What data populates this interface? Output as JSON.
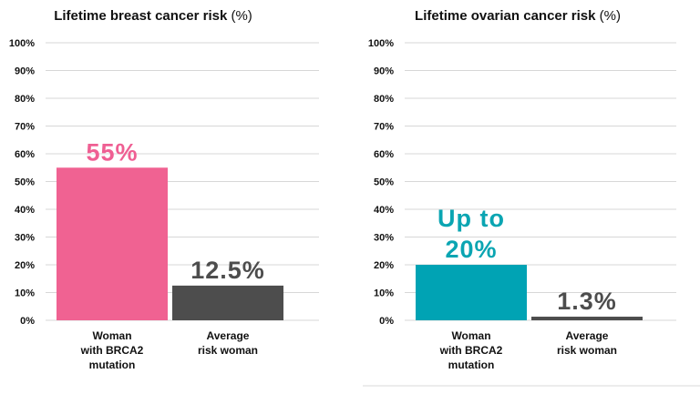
{
  "chart_data": [
    {
      "type": "bar",
      "title": "Lifetime breast cancer risk",
      "title_unit": "(%)",
      "categories": [
        "Woman with BRCA2 mutation",
        "Average risk woman"
      ],
      "category_lines": [
        [
          "Woman",
          "with BRCA2",
          "mutation"
        ],
        [
          "Average",
          "risk woman"
        ]
      ],
      "values": [
        55,
        12.5
      ],
      "data_labels": [
        [
          "55%"
        ],
        [
          "12.5%"
        ]
      ],
      "colors": [
        "#f06292",
        "#4d4d4d"
      ],
      "yticks": [
        "0%",
        "10%",
        "20%",
        "30%",
        "40%",
        "50%",
        "60%",
        "70%",
        "80%",
        "90%",
        "100%"
      ],
      "ylim": [
        0,
        100
      ],
      "grid": true,
      "legend": "none"
    },
    {
      "type": "bar",
      "title": "Lifetime ovarian cancer risk",
      "title_unit": "(%)",
      "categories": [
        "Woman with BRCA2 mutation",
        "Average risk woman"
      ],
      "category_lines": [
        [
          "Woman",
          "with BRCA2",
          "mutation"
        ],
        [
          "Average",
          "risk woman"
        ]
      ],
      "values": [
        20,
        1.3
      ],
      "data_labels": [
        [
          "Up to",
          "20%"
        ],
        [
          "1.3%"
        ]
      ],
      "colors": [
        "#00a3b4",
        "#4d4d4d"
      ],
      "yticks": [
        "0%",
        "10%",
        "20%",
        "30%",
        "40%",
        "50%",
        "60%",
        "70%",
        "80%",
        "90%",
        "100%"
      ],
      "ylim": [
        0,
        100
      ],
      "grid": true,
      "legend": "none"
    }
  ]
}
